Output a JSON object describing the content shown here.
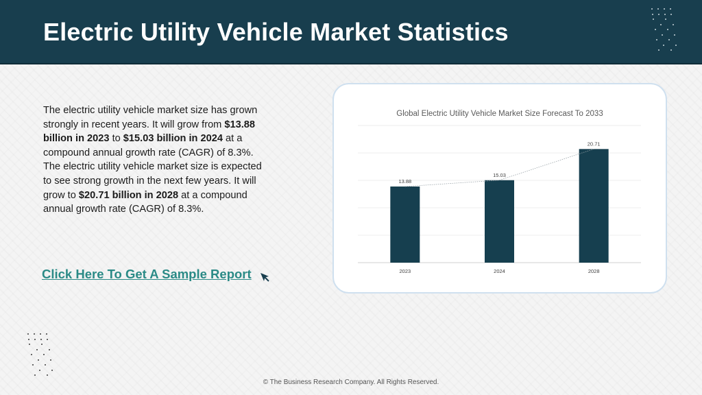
{
  "header": {
    "title": "Electric Utility Vehicle Market Statistics"
  },
  "description": {
    "p1": "The electric utility vehicle market size has grown strongly in recent years. It will grow from ",
    "b1": "$13.88 billion in 2023",
    "p2": " to ",
    "b2": "$15.03 billion in 2024",
    "p3": " at a compound annual growth rate (CAGR) of 8.3%. The electric utility vehicle market size is expected to see strong growth in the next few years. It will grow to ",
    "b3": "$20.71 billion in 2028",
    "p4": " at a compound annual growth rate (CAGR) of 8.3%."
  },
  "cta": {
    "label": "Click Here To Get A Sample Report"
  },
  "footer": {
    "text": "© The Business Research Company. All Rights Reserved."
  },
  "colors": {
    "bar": "#163f4f",
    "header": "#183e4e",
    "link": "#2a8a86"
  },
  "chart_data": {
    "type": "bar",
    "title": "Global Electric Utility Vehicle Market Size Forecast To 2033",
    "categories": [
      "2023",
      "2024",
      "2028"
    ],
    "values": [
      13.88,
      15.03,
      20.71
    ],
    "data_labels": [
      "13.88",
      "15.03",
      "20.71"
    ],
    "ylim": [
      0,
      25
    ],
    "grid": true,
    "trendline": true,
    "legend": "none"
  }
}
